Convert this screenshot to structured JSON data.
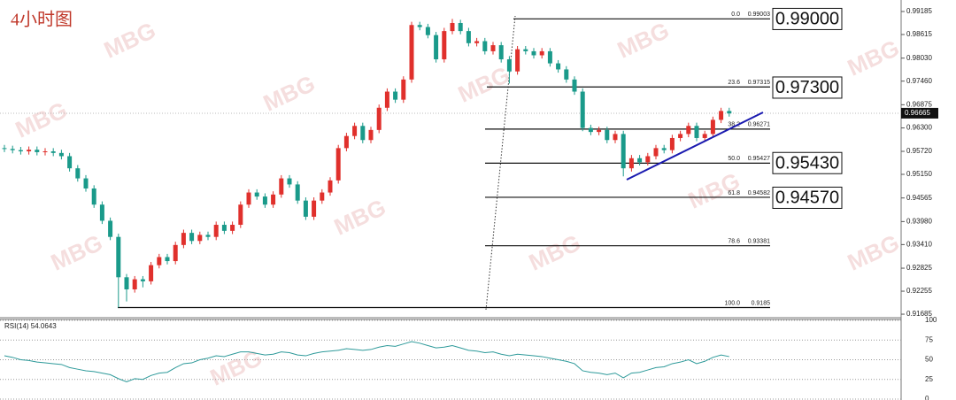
{
  "chart_data": [
    {
      "type": "candlestick",
      "title": "4小时图",
      "watermark": "MBG",
      "up_color": "#e0302c",
      "down_color": "#1a9a8a",
      "ylim": [
        0.9162,
        0.9947
      ],
      "yticks": [
        0.91685,
        0.92255,
        0.92825,
        {
          "value": 0.9341,
          "label": "0.93410"
        },
        {
          "value": 0.9398,
          "label": "0.93980"
        },
        0.94565,
        {
          "value": 0.9515,
          "label": "0.95150"
        },
        {
          "value": 0.9572,
          "label": "0.95720"
        },
        {
          "value": 0.963,
          "label": "0.96300"
        },
        0.96875,
        {
          "value": 0.9746,
          "label": "0.97460"
        },
        {
          "value": 0.9803,
          "label": "0.98030"
        },
        0.98615,
        0.99185
      ],
      "current_price": 0.96665,
      "open": [
        0.958,
        0.9578,
        0.9575,
        0.9572,
        0.9576,
        0.957,
        0.9572,
        0.9568,
        0.956,
        0.953,
        0.9505,
        0.948,
        0.944,
        0.94,
        0.936,
        0.926,
        0.923,
        0.9255,
        0.925,
        0.929,
        0.931,
        0.93,
        0.934,
        0.937,
        0.935,
        0.9365,
        0.936,
        0.939,
        0.9375,
        0.939,
        0.944,
        0.947,
        0.946,
        0.944,
        0.9465,
        0.9505,
        0.949,
        0.945,
        0.941,
        0.945,
        0.947,
        0.95,
        0.958,
        0.961,
        0.9635,
        0.96,
        0.9625,
        0.968,
        0.972,
        0.97,
        0.975,
        0.9885,
        0.988,
        0.986,
        0.98,
        0.987,
        0.989,
        0.987,
        0.984,
        0.9845,
        0.982,
        0.9835,
        0.98,
        0.977,
        0.9825,
        0.982,
        0.981,
        0.982,
        0.979,
        0.9775,
        0.975,
        0.972,
        0.963,
        0.962,
        0.9625,
        0.96,
        0.9615,
        0.953,
        0.9555,
        0.9545,
        0.956,
        0.958,
        0.9575,
        0.9605,
        0.9615,
        0.9635,
        0.9605,
        0.9615,
        0.965,
        0.9672
      ],
      "high": [
        0.9588,
        0.9586,
        0.9583,
        0.9584,
        0.9584,
        0.958,
        0.958,
        0.9576,
        0.9568,
        0.9538,
        0.9513,
        0.9488,
        0.9448,
        0.9408,
        0.9368,
        0.9268,
        0.9263,
        0.9263,
        0.9298,
        0.9318,
        0.9318,
        0.9348,
        0.9378,
        0.9378,
        0.9373,
        0.9373,
        0.9398,
        0.9398,
        0.9398,
        0.9448,
        0.9478,
        0.9478,
        0.9468,
        0.9473,
        0.9513,
        0.9513,
        0.9498,
        0.9458,
        0.9458,
        0.9478,
        0.9508,
        0.9588,
        0.9618,
        0.9643,
        0.9643,
        0.9633,
        0.9688,
        0.9728,
        0.9728,
        0.9758,
        0.9893,
        0.9893,
        0.9888,
        0.9868,
        0.9878,
        0.99,
        0.9898,
        0.9878,
        0.9853,
        0.9853,
        0.9843,
        0.9843,
        0.9808,
        0.9833,
        0.9833,
        0.9828,
        0.9828,
        0.9828,
        0.9798,
        0.9783,
        0.9758,
        0.9728,
        0.9638,
        0.9633,
        0.9633,
        0.9623,
        0.9623,
        0.9563,
        0.9563,
        0.9568,
        0.9588,
        0.9588,
        0.9613,
        0.9623,
        0.9643,
        0.9643,
        0.9623,
        0.9658,
        0.968,
        0.968
      ],
      "low": [
        0.957,
        0.9567,
        0.9564,
        0.9564,
        0.9562,
        0.9562,
        0.956,
        0.9552,
        0.9522,
        0.9497,
        0.9472,
        0.9432,
        0.9392,
        0.9352,
        0.9185,
        0.92,
        0.9222,
        0.9235,
        0.9242,
        0.9282,
        0.9292,
        0.9292,
        0.9332,
        0.9342,
        0.9342,
        0.9352,
        0.9352,
        0.9367,
        0.9367,
        0.9382,
        0.9432,
        0.9452,
        0.9432,
        0.9432,
        0.9457,
        0.9482,
        0.9442,
        0.9402,
        0.9402,
        0.9442,
        0.9462,
        0.9492,
        0.9572,
        0.9602,
        0.9592,
        0.9592,
        0.9617,
        0.9672,
        0.9692,
        0.9692,
        0.9742,
        0.9872,
        0.9852,
        0.9792,
        0.9792,
        0.9862,
        0.9862,
        0.9832,
        0.9832,
        0.9812,
        0.9812,
        0.9792,
        0.974,
        0.9762,
        0.9812,
        0.9802,
        0.9802,
        0.9782,
        0.9767,
        0.9742,
        0.9712,
        0.9622,
        0.9612,
        0.9612,
        0.9592,
        0.9592,
        0.951,
        0.9522,
        0.9537,
        0.9537,
        0.9552,
        0.9567,
        0.9567,
        0.9597,
        0.9607,
        0.9597,
        0.9597,
        0.9607,
        0.9642,
        0.9658
      ],
      "close": [
        0.9578,
        0.9575,
        0.9572,
        0.9576,
        0.957,
        0.9572,
        0.9568,
        0.956,
        0.953,
        0.9505,
        0.948,
        0.944,
        0.94,
        0.936,
        0.926,
        0.923,
        0.9255,
        0.925,
        0.929,
        0.931,
        0.93,
        0.934,
        0.937,
        0.935,
        0.9365,
        0.936,
        0.939,
        0.9375,
        0.939,
        0.944,
        0.947,
        0.946,
        0.944,
        0.9465,
        0.9505,
        0.949,
        0.945,
        0.941,
        0.945,
        0.947,
        0.95,
        0.958,
        0.961,
        0.9635,
        0.96,
        0.9625,
        0.968,
        0.972,
        0.97,
        0.975,
        0.9885,
        0.988,
        0.986,
        0.98,
        0.987,
        0.989,
        0.987,
        0.984,
        0.9845,
        0.982,
        0.9835,
        0.98,
        0.977,
        0.9825,
        0.982,
        0.981,
        0.982,
        0.979,
        0.9775,
        0.975,
        0.972,
        0.963,
        0.962,
        0.9625,
        0.96,
        0.9615,
        0.953,
        0.9555,
        0.9545,
        0.956,
        0.958,
        0.9575,
        0.9605,
        0.9615,
        0.9635,
        0.9605,
        0.9615,
        0.965,
        0.9672,
        0.9666
      ],
      "fib_levels": [
        {
          "ratio": "0.0",
          "price": 0.99003
        },
        {
          "ratio": "23.6",
          "price": 0.97315
        },
        {
          "ratio": "38.2",
          "price": 0.96271
        },
        {
          "ratio": "50.0",
          "price": 0.95427
        },
        {
          "ratio": "61.8",
          "price": 0.94582
        },
        {
          "ratio": "78.6",
          "price": 0.93381
        },
        {
          "ratio": "100.0",
          "price": 0.9185
        }
      ],
      "target_labels": [
        {
          "value": 0.99,
          "label": "0.99000"
        },
        {
          "value": 0.973,
          "label": "0.97300"
        },
        {
          "value": 0.9543,
          "label": "0.95430"
        },
        {
          "value": 0.9457,
          "label": "0.94570"
        }
      ]
    },
    {
      "type": "line",
      "title": "RSI(14) 54.0643",
      "color": "#2e9a9a",
      "ylim": [
        0,
        100
      ],
      "yticks": [
        0,
        25,
        50,
        75,
        100
      ],
      "values": [
        55,
        53,
        50,
        49,
        47,
        46,
        45,
        44,
        40,
        38,
        36,
        35,
        33,
        31,
        26,
        22,
        26,
        25,
        30,
        33,
        34,
        40,
        45,
        46,
        50,
        52,
        55,
        54,
        57,
        60,
        60,
        58,
        56,
        57,
        60,
        59,
        56,
        55,
        58,
        60,
        61,
        62,
        64,
        63,
        62,
        63,
        66,
        68,
        67,
        70,
        73,
        71,
        68,
        65,
        66,
        68,
        65,
        62,
        61,
        59,
        60,
        57,
        55,
        57,
        56,
        55,
        54,
        52,
        50,
        48,
        45,
        36,
        34,
        33,
        31,
        33,
        27,
        33,
        34,
        37,
        40,
        41,
        45,
        47,
        50,
        45,
        48,
        53,
        56,
        54
      ]
    }
  ]
}
